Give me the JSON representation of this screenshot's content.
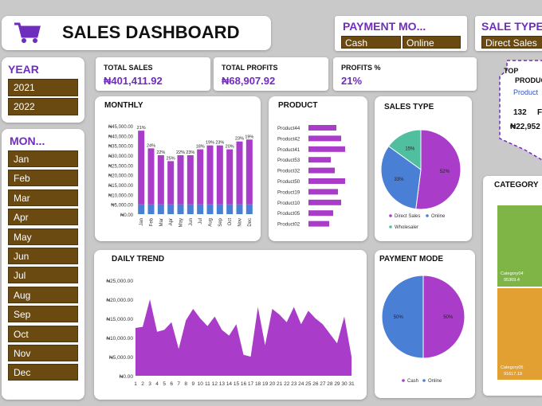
{
  "header": {
    "title": "SALES DASHBOARD",
    "icon": "shopping-cart-icon"
  },
  "payment_filter": {
    "title": "PAYMENT MO...",
    "options": [
      "Cash",
      "Online"
    ]
  },
  "saletype_filter": {
    "title": "SALE TYPE",
    "options": [
      "Direct Sales"
    ]
  },
  "year": {
    "title": "YEAR",
    "options": [
      "2021",
      "2022"
    ]
  },
  "month": {
    "title": "MON...",
    "options": [
      "Jan",
      "Feb",
      "Mar",
      "Apr",
      "May",
      "Jun",
      "Jul",
      "Aug",
      "Sep",
      "Oct",
      "Nov",
      "Dec"
    ]
  },
  "kpis": [
    {
      "label": "TOTAL SALES",
      "value": "₦401,411.92"
    },
    {
      "label": "TOTAL PROFITS",
      "value": "₦68,907.92"
    },
    {
      "label": "PROFITS %",
      "value": "21%"
    }
  ],
  "top": {
    "title": "TOP",
    "line2": "PRODUC",
    "line3": "Product",
    "n1": "132",
    "n2": "F",
    "amount": "₦22,952"
  },
  "colors": {
    "purple": "#a93cc9",
    "blue": "#4a7fd6",
    "teal": "#4fbf9f",
    "brown": "#6b4a12",
    "accent": "#6f2dbd",
    "green": "#7fb446",
    "orange": "#e2a032"
  },
  "chart_data": [
    {
      "type": "bar",
      "title": "MONTHLY",
      "categories": [
        "Jan",
        "Feb",
        "Mar",
        "Apr",
        "May",
        "Jun",
        "Jul",
        "Aug",
        "Sep",
        "Oct",
        "Nov",
        "Dec"
      ],
      "series": [
        {
          "values": [
            5000,
            5000,
            5000,
            5000,
            5000,
            5000,
            5000,
            5000,
            5000,
            5000,
            5000,
            5000
          ]
        },
        {
          "values": [
            37500,
            28500,
            25000,
            22000,
            25000,
            25000,
            28000,
            30000,
            30000,
            28000,
            32000,
            33000
          ]
        }
      ],
      "data_labels": [
        "21%",
        "24%",
        "22%",
        "25%",
        "22%",
        "23%",
        "18%",
        "19%",
        "23%",
        "20%",
        "23%",
        "19%"
      ],
      "yticks": [
        "₦0.00",
        "₦5,000.00",
        "₦10,000.00",
        "₦15,000.00",
        "₦20,000.00",
        "₦25,000.00",
        "₦30,000.00",
        "₦35,000.00",
        "₦40,000.00",
        "₦45,000.00"
      ],
      "ylim": [
        0,
        45000
      ]
    },
    {
      "type": "bar",
      "title": "PRODUCT",
      "categories": [
        "Product44",
        "Product42",
        "Product41",
        "Product53",
        "Product32",
        "Product50",
        "Product19",
        "Product10",
        "Product05",
        "Product02"
      ],
      "values": [
        70,
        82,
        92,
        56,
        66,
        92,
        74,
        82,
        62,
        52
      ]
    },
    {
      "type": "pie",
      "title": "SALES TYPE",
      "labels": [
        "Direct Sales",
        "Online",
        "Wholesaler"
      ],
      "values": [
        52,
        33,
        15
      ],
      "value_labels": [
        "52%",
        "33%",
        "15%"
      ]
    },
    {
      "type": "area",
      "title": "DAILY TREND",
      "x": [
        1,
        2,
        3,
        4,
        5,
        6,
        7,
        8,
        9,
        10,
        11,
        12,
        13,
        14,
        15,
        16,
        17,
        18,
        19,
        20,
        21,
        22,
        23,
        24,
        25,
        26,
        27,
        28,
        29,
        30,
        31
      ],
      "values": [
        12500,
        12800,
        20000,
        11500,
        12000,
        14000,
        7000,
        14500,
        17500,
        15000,
        13000,
        15500,
        12000,
        10500,
        13500,
        5500,
        5000,
        18000,
        8000,
        17500,
        16000,
        14000,
        18000,
        13500,
        17000,
        15000,
        13500,
        11000,
        8500,
        15500,
        5000
      ],
      "yticks": [
        "₦0.00",
        "₦5,000.00",
        "₦10,000.00",
        "₦15,000.00",
        "₦20,000.00",
        "₦25,000.00"
      ],
      "ylim": [
        0,
        25000
      ]
    },
    {
      "type": "pie",
      "title": "PAYMENT MODE",
      "labels": [
        "Cash",
        "Online"
      ],
      "values": [
        50,
        50
      ],
      "value_labels": [
        "50%",
        "50%"
      ]
    },
    {
      "type": "bar",
      "title": "CATEGORY",
      "categories": [
        "Category04",
        "Category05"
      ],
      "value_labels": [
        "95369.4",
        "91617.19"
      ]
    }
  ]
}
